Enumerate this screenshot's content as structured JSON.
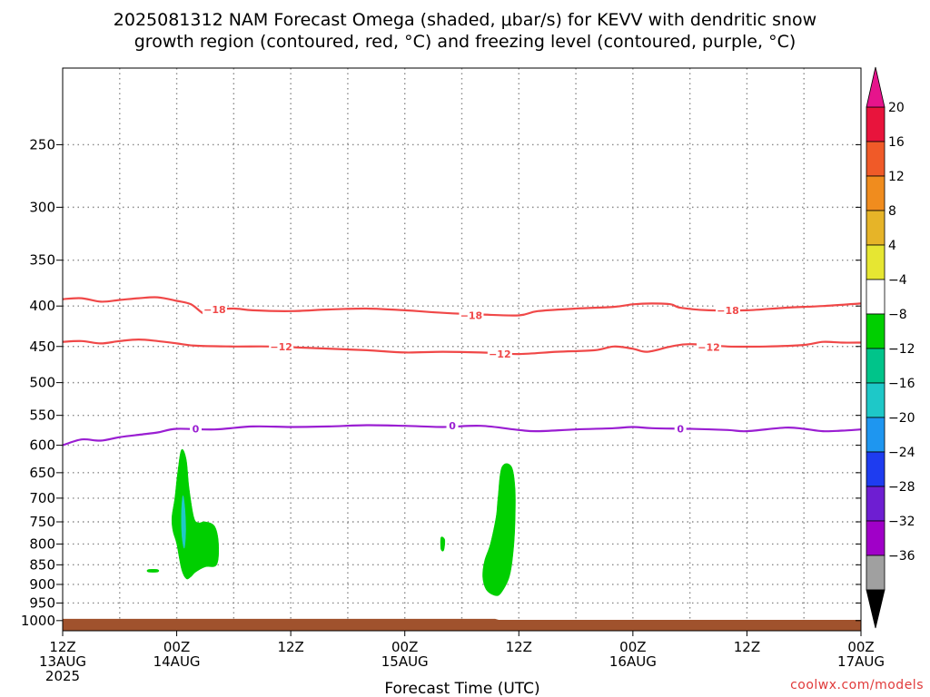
{
  "title_line1": "2025081312 NAM Forecast Omega (shaded, μbar/s) for KEVV with dendritic snow",
  "title_line2": "growth region (contoured, red, °C) and freezing level (contoured, purple, °C)",
  "credit": "coolwx.com/models",
  "colors": {
    "dgz_contour": "#f04848",
    "freezing_contour": "#9a1ed2",
    "terrain": "#a0522d",
    "omega_light": "#00cf00",
    "omega_mid": "#00c48a",
    "omega_strong": "#20c8c8",
    "grid": "#8a8a8a"
  },
  "chart_data": {
    "type": "heatmap",
    "xlabel": "Forecast Time (UTC)",
    "ylabel": "",
    "y_axis": {
      "scale": "pressure",
      "inverted": true,
      "ylim": [
        1030,
        200
      ]
    },
    "x_axis": {
      "range_hours": [
        0,
        84
      ]
    },
    "x_ticks": [
      {
        "h": 0,
        "lines": [
          "12Z",
          "13AUG",
          "2025"
        ]
      },
      {
        "h": 12,
        "lines": [
          "00Z",
          "14AUG"
        ]
      },
      {
        "h": 24,
        "lines": [
          "12Z"
        ]
      },
      {
        "h": 36,
        "lines": [
          "00Z",
          "15AUG"
        ]
      },
      {
        "h": 48,
        "lines": [
          "12Z"
        ]
      },
      {
        "h": 60,
        "lines": [
          "00Z",
          "16AUG"
        ]
      },
      {
        "h": 72,
        "lines": [
          "12Z"
        ]
      },
      {
        "h": 84,
        "lines": [
          "00Z",
          "17AUG"
        ]
      }
    ],
    "y_ticks": [
      250,
      300,
      350,
      400,
      450,
      500,
      550,
      600,
      650,
      700,
      750,
      800,
      850,
      900,
      950,
      1000
    ],
    "grid": true,
    "colorbar": {
      "labels": [
        "20",
        "16",
        "12",
        "8",
        "4",
        "−4",
        "−8",
        "−12",
        "−16",
        "−20",
        "−24",
        "−28",
        "−32",
        "−36"
      ],
      "segments": [
        "#e8143c",
        "#f05a28",
        "#f08c1e",
        "#e6b428",
        "#e6e632",
        "#ffffff",
        "#00cf00",
        "#00c48a",
        "#1ec8c8",
        "#1e96f0",
        "#1e3cf0",
        "#6e1ed2",
        "#a000c8",
        "#a0a0a0"
      ],
      "top_arrow_color": "#e6148c",
      "bottom_arrow_color": "#000000"
    },
    "contours": [
      {
        "level": -18,
        "label": "−18",
        "color_key": "dgz_contour",
        "points": [
          [
            0,
            392
          ],
          [
            2,
            391
          ],
          [
            4,
            395
          ],
          [
            6,
            393
          ],
          [
            8,
            391
          ],
          [
            10,
            390
          ],
          [
            12,
            394
          ],
          [
            13.5,
            398
          ],
          [
            15,
            410
          ],
          [
            16,
            405
          ],
          [
            18,
            403
          ],
          [
            20,
            405
          ],
          [
            24,
            406
          ],
          [
            28,
            404
          ],
          [
            32,
            403
          ],
          [
            36,
            405
          ],
          [
            40,
            408
          ],
          [
            44,
            410
          ],
          [
            48,
            411
          ],
          [
            50,
            406
          ],
          [
            54,
            403
          ],
          [
            58,
            401
          ],
          [
            60,
            398
          ],
          [
            62,
            397
          ],
          [
            64,
            398
          ],
          [
            65,
            402
          ],
          [
            68,
            405
          ],
          [
            72,
            405
          ],
          [
            76,
            402
          ],
          [
            80,
            400
          ],
          [
            84,
            397
          ]
        ],
        "labels_at": [
          [
            16,
            404
          ],
          [
            43,
            411
          ],
          [
            70,
            405
          ]
        ]
      },
      {
        "level": -12,
        "label": "−12",
        "color_key": "dgz_contour",
        "points": [
          [
            0,
            444
          ],
          [
            2,
            443
          ],
          [
            4,
            446
          ],
          [
            6,
            443
          ],
          [
            8,
            441
          ],
          [
            10,
            443
          ],
          [
            12,
            446
          ],
          [
            14,
            449
          ],
          [
            18,
            450
          ],
          [
            22,
            450
          ],
          [
            26,
            452
          ],
          [
            32,
            455
          ],
          [
            36,
            458
          ],
          [
            40,
            457
          ],
          [
            44,
            458
          ],
          [
            48,
            460
          ],
          [
            52,
            457
          ],
          [
            56,
            455
          ],
          [
            58,
            450
          ],
          [
            60,
            453
          ],
          [
            61.5,
            457
          ],
          [
            64,
            450
          ],
          [
            66,
            447
          ],
          [
            70,
            450
          ],
          [
            74,
            450
          ],
          [
            78,
            448
          ],
          [
            80,
            444
          ],
          [
            82,
            445
          ],
          [
            84,
            445
          ]
        ],
        "labels_at": [
          [
            23,
            450
          ],
          [
            46,
            460
          ],
          [
            68,
            451
          ]
        ]
      },
      {
        "level": 0,
        "label": "0",
        "color_key": "freezing_contour",
        "points": [
          [
            0,
            600
          ],
          [
            2,
            590
          ],
          [
            4,
            592
          ],
          [
            6,
            586
          ],
          [
            8,
            582
          ],
          [
            10,
            578
          ],
          [
            12,
            572
          ],
          [
            16,
            573
          ],
          [
            20,
            568
          ],
          [
            24,
            569
          ],
          [
            28,
            568
          ],
          [
            32,
            566
          ],
          [
            36,
            567
          ],
          [
            40,
            569
          ],
          [
            44,
            567
          ],
          [
            48,
            574
          ],
          [
            50,
            576
          ],
          [
            54,
            573
          ],
          [
            58,
            571
          ],
          [
            60,
            569
          ],
          [
            62,
            571
          ],
          [
            66,
            572
          ],
          [
            70,
            574
          ],
          [
            72,
            576
          ],
          [
            76,
            570
          ],
          [
            78,
            572
          ],
          [
            80,
            576
          ],
          [
            82,
            575
          ],
          [
            84,
            573
          ]
        ],
        "labels_at": [
          [
            14,
            572
          ],
          [
            41,
            567
          ],
          [
            65,
            572
          ]
        ]
      }
    ],
    "shaded_regions": [
      {
        "value_range": [
          -8,
          -4
        ],
        "color_key": "omega_light",
        "points": [
          [
            12.5,
            608
          ],
          [
            13,
            625
          ],
          [
            13.3,
            680
          ],
          [
            13.8,
            740
          ],
          [
            14.3,
            752
          ],
          [
            15,
            750
          ],
          [
            16,
            760
          ],
          [
            16.4,
            800
          ],
          [
            16.2,
            850
          ],
          [
            15,
            855
          ],
          [
            14,
            868
          ],
          [
            13.5,
            880
          ],
          [
            13,
            885
          ],
          [
            12.5,
            860
          ],
          [
            12,
            800
          ],
          [
            11.6,
            770
          ],
          [
            11.5,
            740
          ],
          [
            11.8,
            700
          ],
          [
            12.1,
            650
          ]
        ]
      },
      {
        "value_range": [
          -12,
          -8
        ],
        "color_key": "omega_strong",
        "points": [
          [
            12.65,
            695
          ],
          [
            12.85,
            720
          ],
          [
            12.95,
            770
          ],
          [
            12.8,
            810
          ],
          [
            12.55,
            780
          ],
          [
            12.5,
            730
          ]
        ]
      },
      {
        "value_range": [
          -8,
          -4
        ],
        "color_key": "omega_light",
        "points": [
          [
            9,
            862
          ],
          [
            10,
            862
          ],
          [
            10,
            868
          ],
          [
            9,
            868
          ]
        ]
      },
      {
        "value_range": [
          -8,
          -4
        ],
        "color_key": "omega_light",
        "points": [
          [
            39.8,
            785
          ],
          [
            40.2,
            790
          ],
          [
            40.1,
            815
          ],
          [
            39.8,
            812
          ]
        ]
      },
      {
        "value_range": [
          -8,
          -4
        ],
        "color_key": "omega_light",
        "points": [
          [
            46.2,
            640
          ],
          [
            47.2,
            638
          ],
          [
            47.6,
            680
          ],
          [
            47.6,
            750
          ],
          [
            47.4,
            820
          ],
          [
            47,
            880
          ],
          [
            46.2,
            920
          ],
          [
            45.6,
            930
          ],
          [
            44.6,
            915
          ],
          [
            44.2,
            880
          ],
          [
            44.4,
            840
          ],
          [
            45,
            800
          ],
          [
            45.6,
            740
          ],
          [
            45.8,
            700
          ]
        ]
      }
    ],
    "terrain": {
      "color_key": "terrain",
      "top_hpa_start": 995,
      "top_hpa_end": 998,
      "break_hour": 45.5,
      "bottom_hpa": 1030
    }
  }
}
